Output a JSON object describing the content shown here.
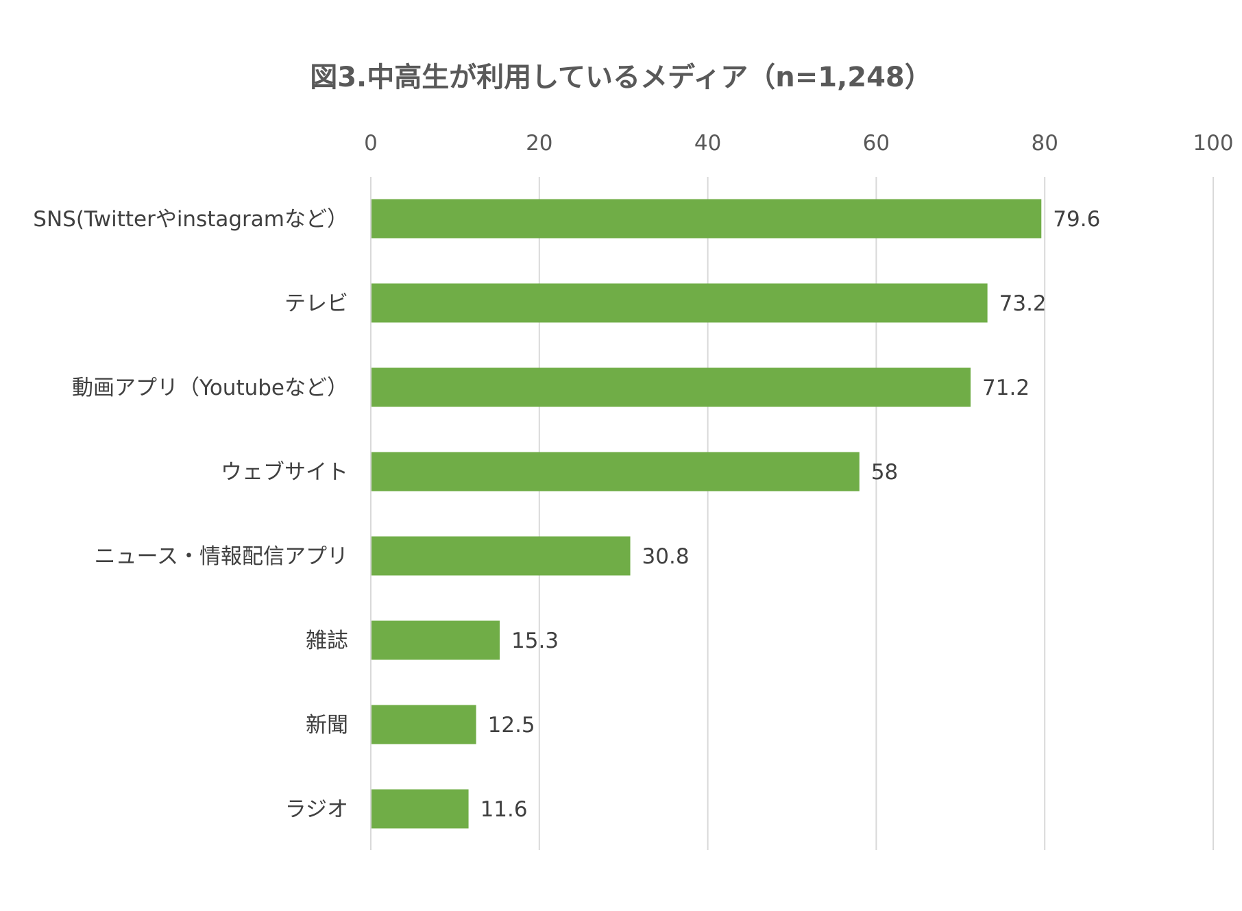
{
  "chart_data": {
    "type": "bar",
    "orientation": "horizontal",
    "title": "図3.中高生が利用しているメディア（n=1,248）",
    "categories": [
      "SNS(Twitterやinstagramなど）",
      "テレビ",
      "動画アプリ（Youtubeなど）",
      "ウェブサイト",
      "ニュース・情報配信アプリ",
      "雑誌",
      "新聞",
      "ラジオ"
    ],
    "values": [
      79.6,
      73.2,
      71.2,
      58,
      30.8,
      15.3,
      12.5,
      11.6
    ],
    "value_labels": [
      "79.6",
      "73.2",
      "71.2",
      "58",
      "30.8",
      "15.3",
      "12.5",
      "11.6"
    ],
    "xlim": [
      0,
      100
    ],
    "x_ticks": [
      "0",
      "20",
      "40",
      "60",
      "80",
      "100"
    ],
    "axis_position": "top",
    "grid": true,
    "legend": false,
    "colors": {
      "bar": "#70AD47",
      "grid": "#D9D9D9"
    }
  }
}
